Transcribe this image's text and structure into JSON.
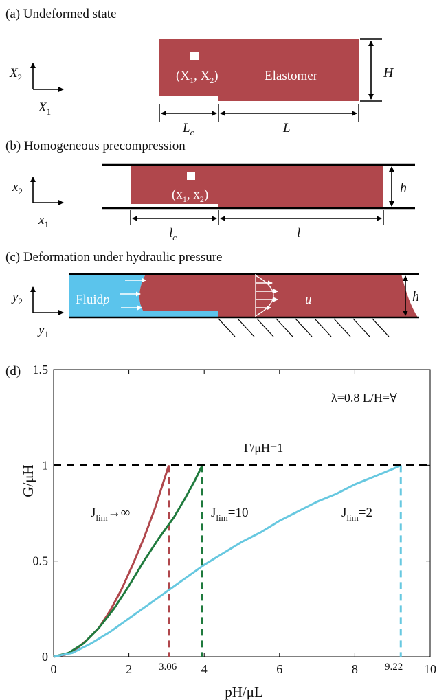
{
  "colors": {
    "elastomer": "#b0474c",
    "fluid": "#5bc4ec",
    "green": "#1f7a3d",
    "light_blue": "#67c8e0",
    "black": "#000000",
    "white": "#ffffff"
  },
  "panel_a": {
    "label": "(a) Undeformed state",
    "axis_vertical": "X",
    "axis_vertical_sub": "2",
    "axis_horizontal": "X",
    "axis_horizontal_sub": "1",
    "point_label": "(X",
    "point_sub1": "1",
    "point_mid": ", X",
    "point_sub2": "2",
    "point_end": ")",
    "material_label": "Elastomer",
    "height_label": "H",
    "crack_length_label": "L",
    "crack_length_sub": "c",
    "length_label": "L"
  },
  "panel_b": {
    "label": "(b) Homogeneous precompression",
    "axis_vertical": "x",
    "axis_vertical_sub": "2",
    "axis_horizontal": "x",
    "axis_horizontal_sub": "1",
    "point_label": "(x",
    "point_sub1": "1",
    "point_mid": ", x",
    "point_sub2": "2",
    "point_end": ")",
    "height_label": "h",
    "crack_length_label": "l",
    "crack_length_sub": "c",
    "length_label": "l"
  },
  "panel_c": {
    "label": "(c) Deformation under hydraulic pressure",
    "axis_vertical": "y",
    "axis_vertical_sub": "2",
    "axis_horizontal": "y",
    "axis_horizontal_sub": "1",
    "fluid_label": "Fluid",
    "pressure_label": "p",
    "displacement_label": "u",
    "height_label": "h"
  },
  "chart_data": {
    "type": "line",
    "panel_label": "(d)",
    "xlabel": "pH/μL",
    "ylabel": "G/μH",
    "xlim": [
      0,
      10
    ],
    "ylim": [
      0,
      1.5
    ],
    "x_ticks": [
      0,
      2,
      4,
      6,
      8,
      10
    ],
    "y_ticks": [
      0,
      0.5,
      1,
      1.5
    ],
    "y_tick_labels": [
      "0",
      "0.5",
      "1",
      "1.5"
    ],
    "annotation_params": "λ=0.8 L/H=∀",
    "threshold_label": "Γ/μH=1",
    "threshold_value": 1,
    "critical_labels": [
      "3.06",
      "9.22"
    ],
    "series": [
      {
        "name": "J",
        "name_sub": "lim",
        "name_suffix": "→∞",
        "color": "#b0474c",
        "x": [
          0,
          0.3,
          0.6,
          0.9,
          1.2,
          1.5,
          1.8,
          2.1,
          2.4,
          2.7,
          3.06
        ],
        "y": [
          0,
          0.01,
          0.04,
          0.09,
          0.15,
          0.24,
          0.35,
          0.48,
          0.62,
          0.78,
          1.0
        ],
        "critical_x": 3.06
      },
      {
        "name": "J",
        "name_sub": "lim",
        "name_suffix": "=10",
        "color": "#1f7a3d",
        "x": [
          0,
          0.4,
          0.8,
          1.2,
          1.6,
          2.0,
          2.4,
          2.8,
          3.2,
          3.5,
          3.75,
          3.95
        ],
        "y": [
          0,
          0.02,
          0.07,
          0.15,
          0.25,
          0.37,
          0.5,
          0.62,
          0.73,
          0.83,
          0.92,
          1.0
        ],
        "critical_x": 3.95
      },
      {
        "name": "J",
        "name_sub": "lim",
        "name_suffix": "=2",
        "color": "#67c8e0",
        "x": [
          0,
          0.5,
          1.0,
          1.5,
          2.0,
          2.5,
          3.0,
          3.5,
          4.0,
          4.5,
          5.0,
          5.5,
          6.0,
          6.5,
          7.0,
          7.5,
          8.0,
          8.5,
          9.0,
          9.22
        ],
        "y": [
          0,
          0.02,
          0.07,
          0.13,
          0.2,
          0.27,
          0.34,
          0.41,
          0.48,
          0.54,
          0.6,
          0.65,
          0.71,
          0.76,
          0.81,
          0.85,
          0.9,
          0.94,
          0.98,
          1.0
        ],
        "critical_x": 9.22
      }
    ]
  }
}
